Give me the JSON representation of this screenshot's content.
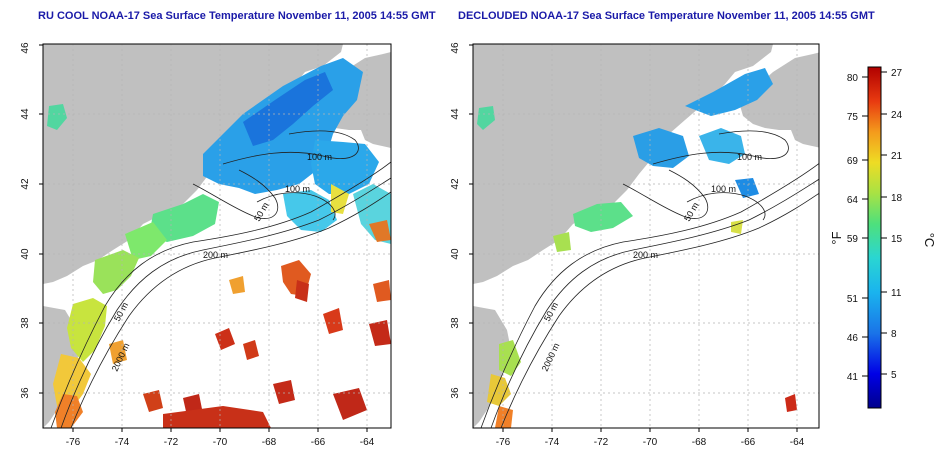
{
  "panels": [
    {
      "id": "left",
      "title": "RU COOL NOAA-17 Sea Surface Temperature November 11, 2005 14:55 GMT",
      "contour_labels": [
        "100 m",
        "100 m",
        "50 m",
        "200 m",
        "50 m",
        "2000 m"
      ]
    },
    {
      "id": "right",
      "title": "DECLOUDED NOAA-17 Sea Surface Temperature November 11, 2005 14:55 GMT",
      "contour_labels": [
        "100 m",
        "100 m",
        "50 m",
        "200 m",
        "50 m",
        "2000 m"
      ]
    }
  ],
  "axes": {
    "x_ticks": [
      "-76",
      "-74",
      "-72",
      "-70",
      "-68",
      "-66",
      "-64"
    ],
    "y_ticks": [
      "36",
      "38",
      "40",
      "42",
      "44",
      "46"
    ],
    "lon_range": [
      -77.2,
      -63.1
    ],
    "lat_range": [
      35,
      46
    ]
  },
  "colorbar": {
    "label_f": "°F",
    "label_c": "°C",
    "f_ticks": [
      "80",
      "75",
      "69",
      "64",
      "59",
      "51",
      "46",
      "41"
    ],
    "c_ticks": [
      "27",
      "24",
      "21",
      "18",
      "15",
      "11",
      "8",
      "5"
    ]
  },
  "colors": {
    "land": "#c0c0c0",
    "ocean_nodata": "#ffffff",
    "title": "#1a1aa8",
    "grid": "#b4b4b4"
  }
}
